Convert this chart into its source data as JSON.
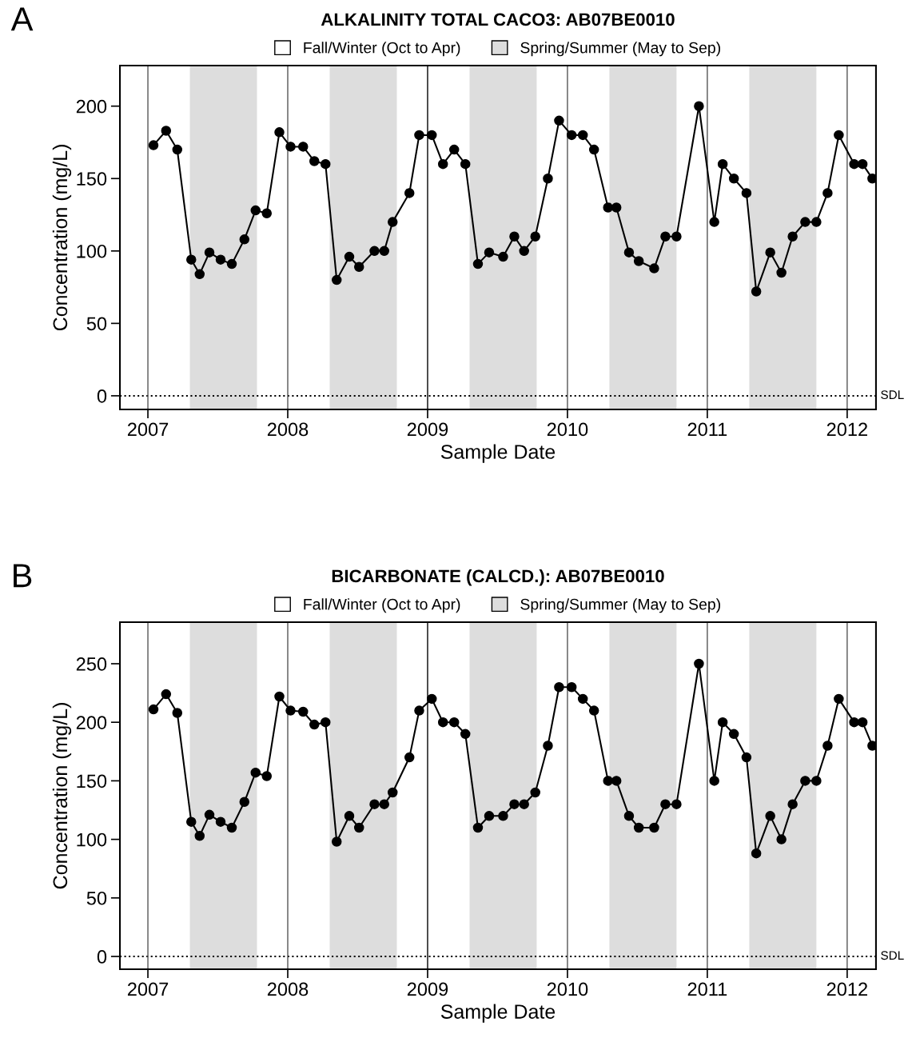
{
  "chart_data": [
    {
      "type": "line",
      "title": "ALKALINITY TOTAL CACO3: AB07BE0010",
      "xlabel": "Sample Date",
      "ylabel": "Concentration (mg/L)",
      "annotations": [
        "A",
        "Fall/Winter (Oct to Apr)"
      ],
      "x": [
        2007.04,
        2007.13,
        2007.21,
        2007.31,
        2007.37,
        2007.44,
        2007.52,
        2007.6,
        2007.69,
        2007.77,
        2007.85,
        2007.94,
        2008.02,
        2008.11,
        2008.19,
        2008.27,
        2008.35,
        2008.44,
        2008.51,
        2008.62,
        2008.69,
        2008.75,
        2008.87,
        2008.94,
        2009.03,
        2009.11,
        2009.19,
        2009.27,
        2009.36,
        2009.44,
        2009.54,
        2009.62,
        2009.69,
        2009.77,
        2009.86,
        2009.94,
        2010.03,
        2010.11,
        2010.19,
        2010.29,
        2010.35,
        2010.44,
        2010.51,
        2010.62,
        2010.7,
        2010.78,
        2010.94,
        2011.05,
        2011.11,
        2011.19,
        2011.28,
        2011.35,
        2011.45,
        2011.53,
        2011.61,
        2011.7,
        2011.78,
        2011.86,
        2011.94,
        2012.05,
        2012.11,
        2012.18
      ],
      "series": [
        {
          "color": "#000000",
          "values": [
            173,
            183,
            170,
            94,
            84,
            99,
            94,
            91,
            108,
            128,
            126,
            182,
            172,
            172,
            162,
            160,
            80,
            96,
            89,
            100,
            100,
            120,
            140,
            180,
            180,
            160,
            170,
            160,
            91,
            99,
            96,
            110,
            100,
            110,
            150,
            190,
            180,
            180,
            170,
            130,
            130,
            99,
            93,
            88,
            110,
            110,
            200,
            120,
            160,
            150,
            140,
            72,
            99,
            85,
            110,
            120,
            120,
            140,
            180,
            160,
            160,
            150
          ]
        }
      ],
      "marker": "circle",
      "line_style": "solid",
      "grid": false,
      "legend": "top",
      "xlim": [
        2006.8,
        2012.206
      ],
      "xticks": [
        2007,
        2008,
        2009,
        2010,
        2011,
        2012
      ],
      "ylim": [
        -9.4,
        228
      ],
      "yticks": [
        0,
        50,
        100,
        150,
        200
      ],
      "ref_lines": [
        {
          "axis": "y",
          "value": 0,
          "label": "SDL",
          "color": "#000000",
          "line_style": "dotted"
        },
        {
          "axis": "x",
          "value": 2007,
          "color": "#555555"
        },
        {
          "axis": "x",
          "value": 2008,
          "color": "#555555"
        },
        {
          "axis": "x",
          "value": 2009,
          "color": "#000000"
        },
        {
          "axis": "x",
          "value": 2010,
          "color": "#555555"
        },
        {
          "axis": "x",
          "value": 2011,
          "color": "#555555"
        },
        {
          "axis": "x",
          "value": 2012,
          "color": "#555555"
        }
      ],
      "bands": [
        {
          "axis": "x",
          "from": 2007.3,
          "to": 2007.78,
          "label": "Spring/Summer (May to Sep)",
          "color": "#dddddd"
        },
        {
          "axis": "x",
          "from": 2008.3,
          "to": 2008.78,
          "color": "#dddddd"
        },
        {
          "axis": "x",
          "from": 2009.3,
          "to": 2009.78,
          "color": "#dddddd"
        },
        {
          "axis": "x",
          "from": 2010.3,
          "to": 2010.78,
          "color": "#dddddd"
        },
        {
          "axis": "x",
          "from": 2011.3,
          "to": 2011.78,
          "color": "#dddddd"
        }
      ]
    },
    {
      "type": "line",
      "title": "BICARBONATE (CALCD.): AB07BE0010",
      "xlabel": "Sample Date",
      "ylabel": "Concentration (mg/L)",
      "annotations": [
        "B",
        "Fall/Winter (Oct to Apr)"
      ],
      "x": [
        2007.04,
        2007.13,
        2007.21,
        2007.31,
        2007.37,
        2007.44,
        2007.52,
        2007.6,
        2007.69,
        2007.77,
        2007.85,
        2007.94,
        2008.02,
        2008.11,
        2008.19,
        2008.27,
        2008.35,
        2008.44,
        2008.51,
        2008.62,
        2008.69,
        2008.75,
        2008.87,
        2008.94,
        2009.03,
        2009.11,
        2009.19,
        2009.27,
        2009.36,
        2009.44,
        2009.54,
        2009.62,
        2009.69,
        2009.77,
        2009.86,
        2009.94,
        2010.03,
        2010.11,
        2010.19,
        2010.29,
        2010.35,
        2010.44,
        2010.51,
        2010.62,
        2010.7,
        2010.78,
        2010.94,
        2011.05,
        2011.11,
        2011.19,
        2011.28,
        2011.35,
        2011.45,
        2011.53,
        2011.61,
        2011.7,
        2011.78,
        2011.86,
        2011.94,
        2012.05,
        2012.11,
        2012.18
      ],
      "series": [
        {
          "color": "#000000",
          "values": [
            211,
            224,
            208,
            115,
            103,
            121,
            115,
            110,
            132,
            157,
            154,
            222,
            210,
            209,
            198,
            200,
            98,
            120,
            110,
            130,
            130,
            140,
            170,
            210,
            220,
            200,
            200,
            190,
            110,
            120,
            120,
            130,
            130,
            140,
            180,
            230,
            230,
            220,
            210,
            150,
            150,
            120,
            110,
            110,
            130,
            130,
            250,
            150,
            200,
            190,
            170,
            88,
            120,
            100,
            130,
            150,
            150,
            180,
            220,
            200,
            200,
            180
          ]
        }
      ],
      "marker": "circle",
      "line_style": "solid",
      "grid": false,
      "legend": "top",
      "xlim": [
        2006.8,
        2012.206
      ],
      "xticks": [
        2007,
        2008,
        2009,
        2010,
        2011,
        2012
      ],
      "ylim": [
        -10.9,
        285.5
      ],
      "yticks": [
        0,
        50,
        100,
        150,
        200,
        250
      ],
      "ref_lines": [
        {
          "axis": "y",
          "value": 0,
          "label": "SDL",
          "color": "#000000",
          "line_style": "dotted"
        },
        {
          "axis": "x",
          "value": 2007,
          "color": "#555555"
        },
        {
          "axis": "x",
          "value": 2008,
          "color": "#555555"
        },
        {
          "axis": "x",
          "value": 2009,
          "color": "#000000"
        },
        {
          "axis": "x",
          "value": 2010,
          "color": "#555555"
        },
        {
          "axis": "x",
          "value": 2011,
          "color": "#555555"
        },
        {
          "axis": "x",
          "value": 2012,
          "color": "#555555"
        }
      ],
      "bands": [
        {
          "axis": "x",
          "from": 2007.3,
          "to": 2007.78,
          "label": "Spring/Summer (May to Sep)",
          "color": "#dddddd"
        },
        {
          "axis": "x",
          "from": 2008.3,
          "to": 2008.78,
          "color": "#dddddd"
        },
        {
          "axis": "x",
          "from": 2009.3,
          "to": 2009.78,
          "color": "#dddddd"
        },
        {
          "axis": "x",
          "from": 2010.3,
          "to": 2010.78,
          "color": "#dddddd"
        },
        {
          "axis": "x",
          "from": 2011.3,
          "to": 2011.78,
          "color": "#dddddd"
        }
      ]
    }
  ]
}
